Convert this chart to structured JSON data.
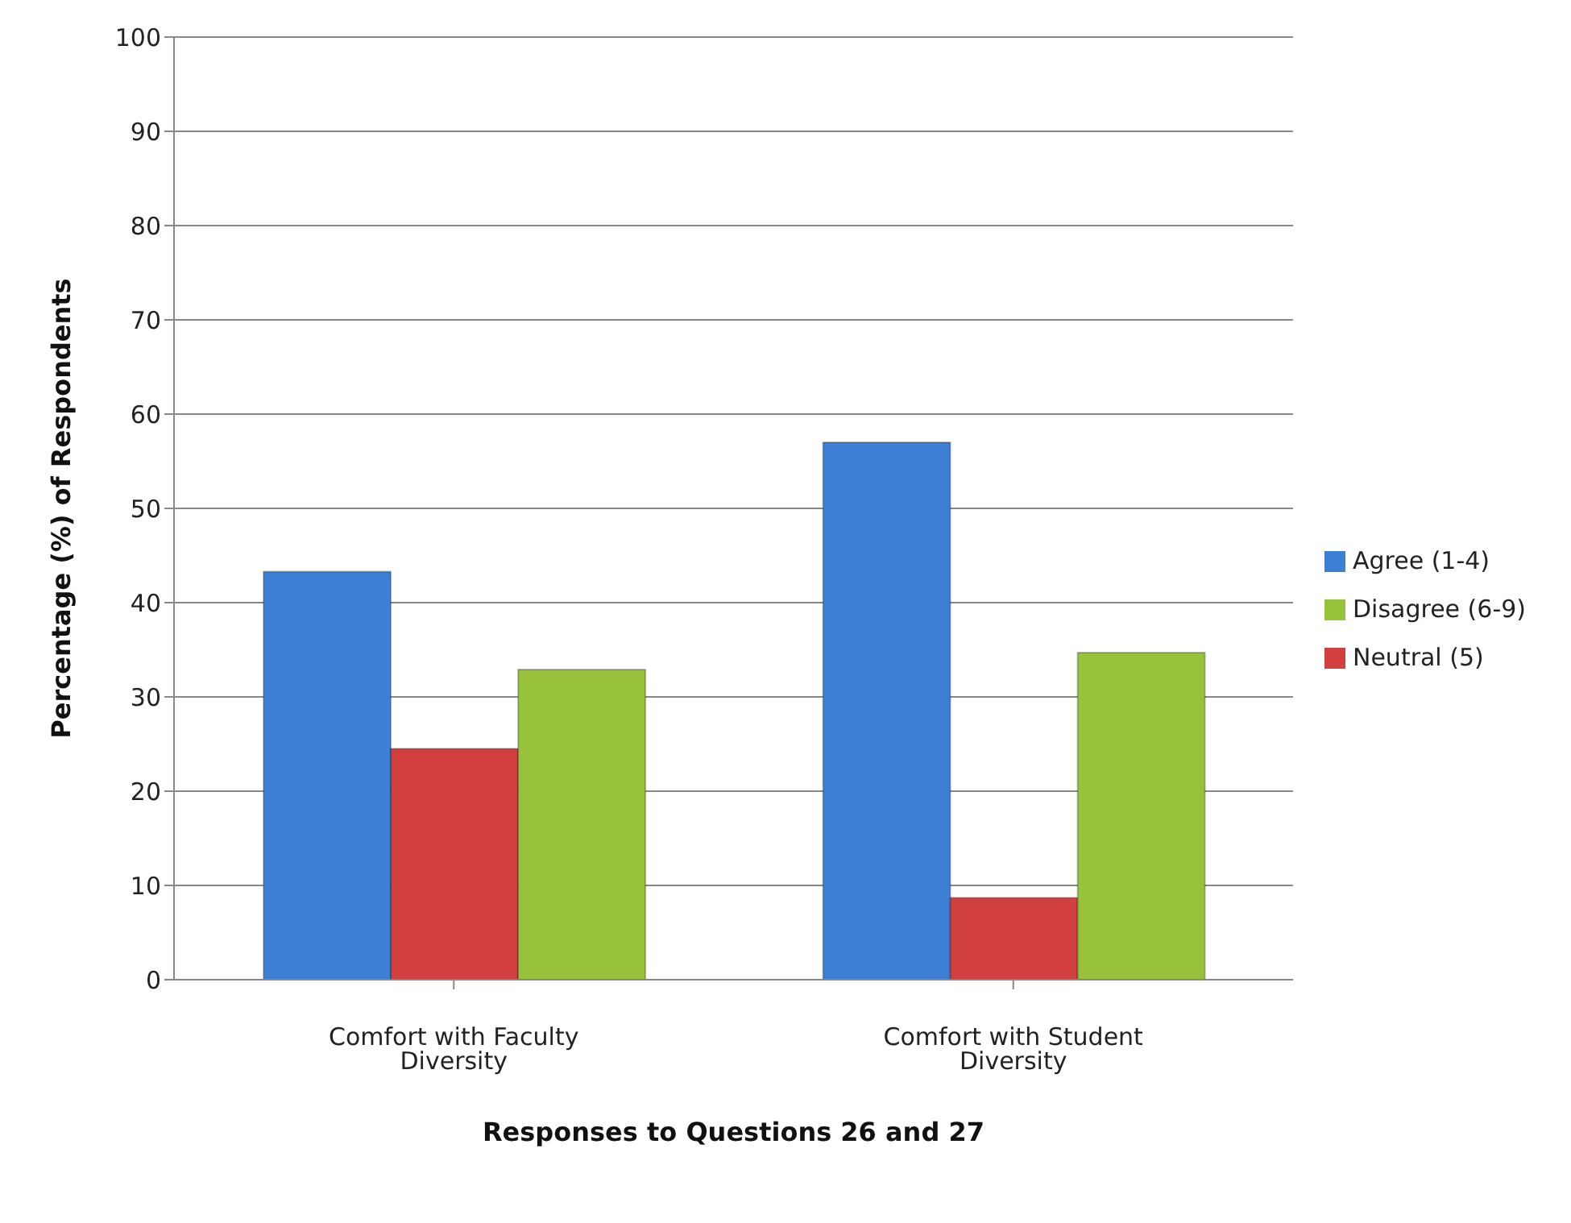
{
  "chart_data": {
    "type": "bar",
    "xlabel": "Responses to Questions 26 and 27",
    "ylabel": "Percentage (%) of Respondents",
    "categories": [
      "Comfort with Faculty Diversity",
      "Comfort with Student Diversity"
    ],
    "series": [
      {
        "name": "Agree (1-4)",
        "color": "#3c7fd4",
        "values": [
          43.3,
          57.0
        ]
      },
      {
        "name": "Neutral (5)",
        "color": "#d23f3f",
        "values": [
          24.5,
          8.7
        ]
      },
      {
        "name": "Disagree (6-9)",
        "color": "#96c23c",
        "values": [
          32.9,
          34.7
        ]
      }
    ],
    "ylim": [
      0,
      100
    ],
    "yticks": [
      0,
      10,
      20,
      30,
      40,
      50,
      60,
      70,
      80,
      90,
      100
    ],
    "grid": "y",
    "legend": "right"
  }
}
